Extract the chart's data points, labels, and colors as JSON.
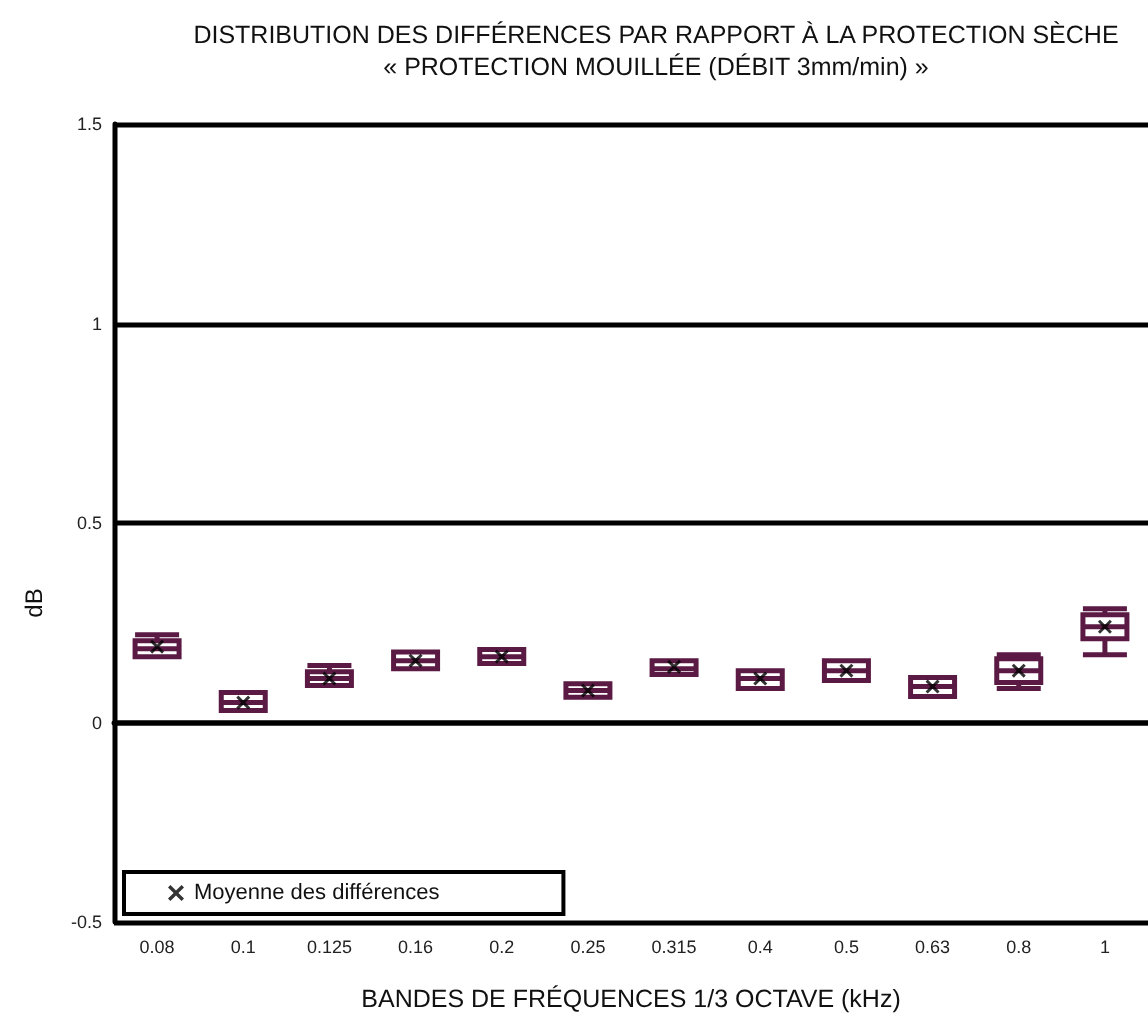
{
  "chart_data": {
    "type": "box",
    "title": "DISTRIBUTION DES DIFFÉRENCES PAR RAPPORT À LA PROTECTION SÈCHE",
    "subtitle": "« PROTECTION MOUILLÉE (DÉBIT 3mm/min) »",
    "xlabel": "BANDES DE FRÉQUENCES 1/3 OCTAVE (kHz)",
    "ylabel": "dB",
    "categories": [
      "0.08",
      "0.1",
      "0.125",
      "0.16",
      "0.2",
      "0.25",
      "0.315",
      "0.4",
      "0.5",
      "0.63",
      "0.8",
      "1"
    ],
    "ylim": [
      -0.5,
      1.5
    ],
    "yticks": [
      -0.5,
      0,
      0.5,
      1,
      1.5
    ],
    "grid": "y",
    "legend": "bottom left",
    "series": [
      {
        "color": "#5b1a44",
        "boxes": [
          {
            "low": 0.165,
            "q1": 0.165,
            "median": 0.185,
            "q3": 0.205,
            "high": 0.22
          },
          {
            "low": 0.03,
            "q1": 0.03,
            "median": 0.05,
            "q3": 0.075,
            "high": 0.075
          },
          {
            "low": 0.093,
            "q1": 0.093,
            "median": 0.11,
            "q3": 0.127,
            "high": 0.143
          },
          {
            "low": 0.135,
            "q1": 0.135,
            "median": 0.155,
            "q3": 0.177,
            "high": 0.177
          },
          {
            "low": 0.148,
            "q1": 0.148,
            "median": 0.165,
            "q3": 0.183,
            "high": 0.183
          },
          {
            "low": 0.063,
            "q1": 0.063,
            "median": 0.08,
            "q3": 0.097,
            "high": 0.097
          },
          {
            "low": 0.12,
            "q1": 0.12,
            "median": 0.135,
            "q3": 0.155,
            "high": 0.155
          },
          {
            "low": 0.085,
            "q1": 0.085,
            "median": 0.11,
            "q3": 0.13,
            "high": 0.13
          },
          {
            "low": 0.105,
            "q1": 0.105,
            "median": 0.13,
            "q3": 0.155,
            "high": 0.155
          },
          {
            "low": 0.065,
            "q1": 0.065,
            "median": 0.09,
            "q3": 0.113,
            "high": 0.113
          },
          {
            "low": 0.085,
            "q1": 0.1,
            "median": 0.13,
            "q3": 0.16,
            "high": 0.17
          },
          {
            "low": 0.17,
            "q1": 0.21,
            "median": 0.24,
            "q3": 0.27,
            "high": 0.285
          }
        ]
      },
      {
        "type": "scatter",
        "name": "Moyenne des différences",
        "color": "#000000",
        "marker": "cross",
        "x": [
          "0.08",
          "0.1",
          "0.125",
          "0.16",
          "0.2",
          "0.25",
          "0.315",
          "0.4",
          "0.5",
          "0.63",
          "0.8",
          "1"
        ],
        "values": [
          0.19,
          0.05,
          0.11,
          0.155,
          0.165,
          0.08,
          0.14,
          0.11,
          0.13,
          0.09,
          0.13,
          0.24
        ]
      }
    ]
  }
}
